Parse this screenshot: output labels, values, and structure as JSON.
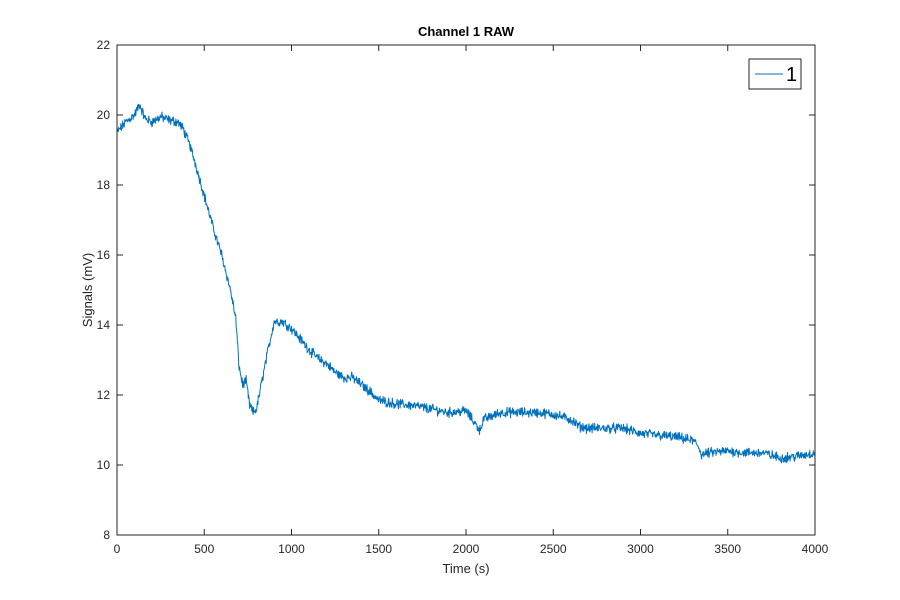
{
  "chart_data": {
    "type": "line",
    "title": "Channel 1 RAW",
    "xlabel": "Time (s)",
    "ylabel": "Signals (mV)",
    "xlim": [
      0,
      4000
    ],
    "ylim": [
      8,
      22
    ],
    "xticks": [
      0,
      500,
      1000,
      1500,
      2000,
      2500,
      3000,
      3500,
      4000
    ],
    "yticks": [
      8,
      10,
      12,
      14,
      16,
      18,
      20,
      22
    ],
    "grid": false,
    "legend_position": "top-right",
    "color": "#0072BD",
    "series": [
      {
        "name": "1",
        "x": [
          0,
          50,
          100,
          130,
          160,
          200,
          250,
          300,
          350,
          380,
          420,
          450,
          500,
          550,
          600,
          650,
          680,
          700,
          720,
          740,
          760,
          780,
          800,
          850,
          900,
          950,
          1000,
          1050,
          1100,
          1150,
          1200,
          1250,
          1300,
          1350,
          1400,
          1450,
          1500,
          1600,
          1700,
          1800,
          1900,
          2000,
          2050,
          2080,
          2100,
          2150,
          2200,
          2300,
          2400,
          2500,
          2600,
          2650,
          2700,
          2800,
          2900,
          3000,
          3100,
          3200,
          3300,
          3330,
          3350,
          3400,
          3500,
          3600,
          3700,
          3800,
          3900,
          4000
        ],
        "y": [
          19.5,
          19.8,
          20.0,
          20.3,
          19.9,
          19.8,
          19.95,
          19.85,
          19.8,
          19.6,
          19.1,
          18.6,
          17.7,
          16.8,
          16.0,
          15.0,
          14.2,
          12.8,
          12.3,
          12.4,
          11.7,
          11.5,
          11.6,
          12.9,
          14.1,
          14.1,
          13.9,
          13.6,
          13.3,
          13.05,
          12.9,
          12.65,
          12.5,
          12.5,
          12.3,
          12.1,
          11.85,
          11.75,
          11.7,
          11.6,
          11.5,
          11.55,
          11.2,
          11.0,
          11.3,
          11.4,
          11.5,
          11.5,
          11.5,
          11.45,
          11.3,
          11.1,
          11.05,
          11.05,
          11.05,
          10.9,
          10.85,
          10.8,
          10.7,
          10.55,
          10.3,
          10.35,
          10.4,
          10.35,
          10.35,
          10.2,
          10.25,
          10.35
        ]
      }
    ]
  }
}
